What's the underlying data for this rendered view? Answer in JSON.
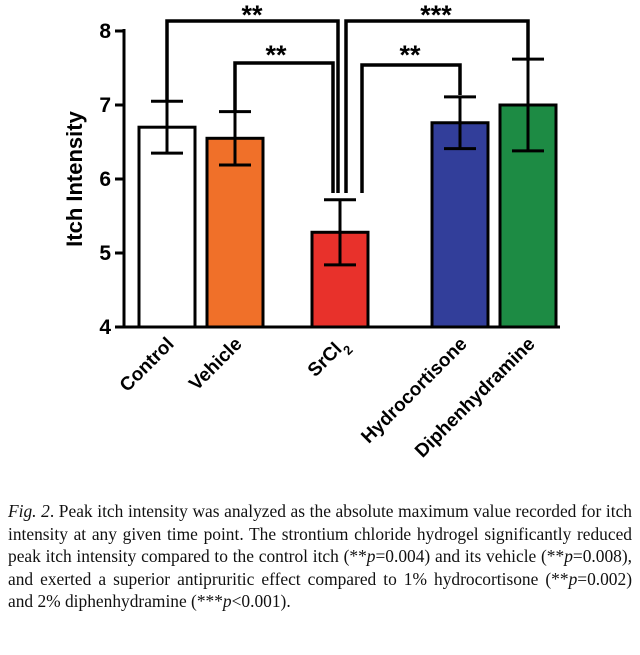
{
  "chart_data": {
    "type": "bar",
    "ylabel": "Itch Intensity",
    "ylim": [
      4,
      8
    ],
    "yticks": [
      "4",
      "5",
      "6",
      "7",
      "8"
    ],
    "categories": [
      {
        "label": "Control",
        "value": 6.7,
        "error": 0.35,
        "color": "#ffffff"
      },
      {
        "label": "Vehicle",
        "value": 6.55,
        "error": 0.36,
        "color": "#f07029"
      },
      {
        "label": "SrCl",
        "subscript": "2",
        "value": 5.28,
        "error": 0.44,
        "color": "#e8312b"
      },
      {
        "label": "Hydrocortisone",
        "value": 6.76,
        "error": 0.35,
        "color": "#323e9a"
      },
      {
        "label": "Diphenhydramine",
        "value": 7.0,
        "error": 0.62,
        "color": "#1d8b44"
      }
    ],
    "significance": [
      {
        "from": "Control",
        "to": "SrCl2",
        "label": "**"
      },
      {
        "from": "Vehicle",
        "to": "SrCl2",
        "label": "**"
      },
      {
        "from": "SrCl2",
        "to": "Hydrocortisone",
        "label": "**"
      },
      {
        "from": "SrCl2",
        "to": "Diphenhydramine",
        "label": "***"
      }
    ]
  },
  "caption": {
    "fig_label": "Fig. 2",
    "text_1": ". Peak itch intensity was analyzed as the absolute maximum value recorded for itch intensity at any given time point. The strontium chloride hydrogel significantly reduced peak itch intensity compared to the control itch (**",
    "p_1": "p",
    "text_2": "=0.004) and its vehicle (**",
    "p_2": "p",
    "text_3": "=0.008), and exerted a superior antipruritic effect compared to 1% hydrocortisone (**",
    "p_3": "p",
    "text_4": "=0.002) and 2% diphenhydramine (***",
    "p_4": "p",
    "text_5": "<0.001)."
  }
}
